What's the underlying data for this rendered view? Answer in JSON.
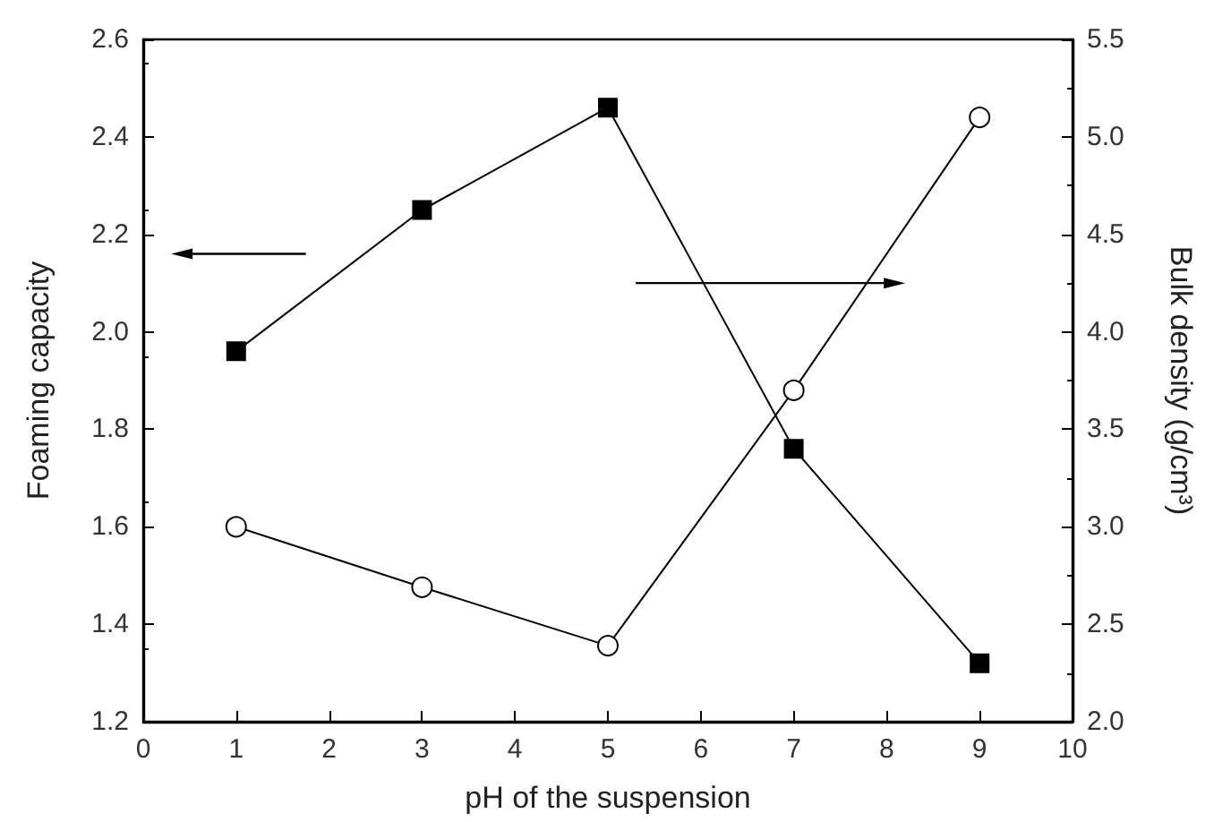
{
  "chart_data": {
    "type": "line",
    "xlabel": "pH of the suspension",
    "ylabel": "Foaming capacity",
    "y2label": "Bulk density (g/cm³)",
    "x": [
      1,
      3,
      5,
      7,
      9
    ],
    "series": [
      {
        "color": "#000000",
        "marker": "square",
        "values": [
          1.96,
          2.25,
          2.46,
          1.76,
          1.32
        ]
      },
      {
        "color": "#000000",
        "marker": "circle",
        "axis": "y2",
        "values": [
          3.0,
          2.69,
          2.39,
          3.7,
          5.1
        ]
      }
    ],
    "xlim": [
      0,
      10
    ],
    "xticks": [
      0,
      1,
      2,
      3,
      4,
      5,
      6,
      7,
      8,
      9,
      10
    ],
    "ylim": [
      1.2,
      2.6
    ],
    "yticks": [
      1.2,
      1.4,
      1.6,
      1.8,
      {
        "value": 2,
        "label": "2.0"
      },
      2.2,
      2.4,
      2.6
    ],
    "y2lim": [
      2.0,
      5.5
    ],
    "y2ticks": [
      {
        "value": 2,
        "label": "2.0"
      },
      2.5,
      {
        "value": 3,
        "label": "3.0"
      },
      3.5,
      {
        "value": 4,
        "label": "4.0"
      },
      4.5,
      {
        "value": 5,
        "label": "5.0"
      },
      5.5
    ],
    "grid": false,
    "line_style": "solid"
  }
}
